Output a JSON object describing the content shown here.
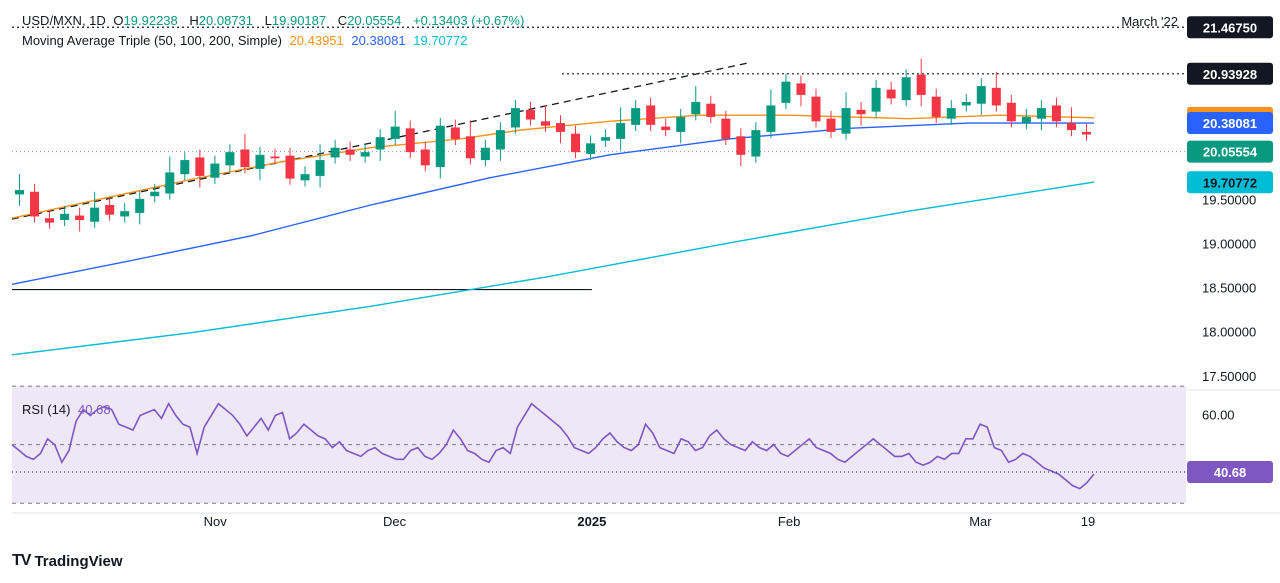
{
  "header": {
    "symbol": "USD/MXN, 1D",
    "ohlc": [
      {
        "key": "O",
        "value": "19.92238"
      },
      {
        "key": "H",
        "value": "20.08731"
      },
      {
        "key": "L",
        "value": "19.90187"
      },
      {
        "key": "C",
        "value": "20.05554"
      }
    ],
    "change": "+0.13403 (+0.67%)",
    "ma_label": "Moving Average Triple (50, 100, 200, Simple)",
    "ma_values": [
      "20.43951",
      "20.38081",
      "19.70772"
    ],
    "rsi_label": "RSI (14)",
    "rsi_value": "40.68",
    "period_label": "March '22"
  },
  "branding": {
    "logo_text": "TradingView"
  },
  "colors": {
    "up": "#089981",
    "down": "#f23645",
    "ma50": "#f7931a",
    "ma100": "#2962ff",
    "ma200": "#00bcd4",
    "rsi": "#7e57c2",
    "rsi_band": "#ede7f6",
    "last_price_badge": "#089981",
    "level_badge": "#131722",
    "grid_dash": "#131722"
  },
  "chart_data": [
    {
      "type": "candlestick",
      "title": "USD/MXN, 1D",
      "ylim": [
        17.35,
        21.55
      ],
      "y_ticks": [
        "21.46750",
        "20.93928",
        "19.50000",
        "19.00000",
        "18.50000",
        "18.00000",
        "17.50000"
      ],
      "x_ticks": [
        "Nov",
        "Dec",
        "2025",
        "Feb",
        "Mar",
        "19"
      ],
      "price_badges": [
        {
          "label": "21.46750",
          "value": 21.4675,
          "kind": "level"
        },
        {
          "label": "20.93928",
          "value": 20.93928,
          "kind": "level"
        },
        {
          "label": "20.43951",
          "value": 20.43951,
          "kind": "ma50"
        },
        {
          "label": "20.38081",
          "value": 20.38081,
          "kind": "ma100"
        },
        {
          "label": "20.05554",
          "value": 20.05554,
          "kind": "last"
        },
        {
          "label": "19.70772",
          "value": 19.70772,
          "kind": "ma200"
        }
      ],
      "horizontal_levels": [
        {
          "value": 21.4675,
          "style": "dotted",
          "extent": "full"
        },
        {
          "value": 20.93928,
          "style": "dotted",
          "extent": "from-jan"
        },
        {
          "value": 18.49,
          "style": "solid",
          "extent": "to-jan"
        }
      ],
      "trendline": {
        "style": "dashed",
        "from": {
          "x": 0,
          "y": 19.29
        },
        "to": {
          "x": 123,
          "y": 21.06
        }
      },
      "x_index_range": [
        0,
        181
      ],
      "candles_anchor": {
        "start_x": 1,
        "x_step": 1.5,
        "count": 72
      },
      "candles_close": [
        19.62,
        19.32,
        19.25,
        19.35,
        19.28,
        19.42,
        19.34,
        19.38,
        19.52,
        19.6,
        19.82,
        19.96,
        19.78,
        19.92,
        20.05,
        19.88,
        20.02,
        19.98,
        19.75,
        19.8,
        19.96,
        20.1,
        20.02,
        20.05,
        20.22,
        20.34,
        20.05,
        19.9,
        20.35,
        20.2,
        19.98,
        20.1,
        20.3,
        20.55,
        20.42,
        20.35,
        20.28,
        20.05,
        20.15,
        20.22,
        20.38,
        20.55,
        20.36,
        20.3,
        20.45,
        20.62,
        20.45,
        20.2,
        20.02,
        20.3,
        20.58,
        20.85,
        20.7,
        20.4,
        20.28,
        20.55,
        20.48,
        20.78,
        20.66,
        20.9,
        20.7,
        20.45,
        20.55,
        20.62,
        20.8,
        20.58,
        20.4,
        20.45,
        20.55,
        20.4,
        20.3,
        20.25
      ],
      "sma50": [
        [
          0,
          19.3
        ],
        [
          15,
          19.52
        ],
        [
          30,
          19.74
        ],
        [
          45,
          19.94
        ],
        [
          60,
          20.1
        ],
        [
          75,
          20.2
        ],
        [
          85,
          20.3
        ],
        [
          100,
          20.4
        ],
        [
          115,
          20.47
        ],
        [
          130,
          20.47
        ],
        [
          150,
          20.43
        ],
        [
          165,
          20.47
        ],
        [
          181,
          20.44
        ]
      ],
      "sma100": [
        [
          0,
          18.55
        ],
        [
          20,
          18.82
        ],
        [
          40,
          19.1
        ],
        [
          60,
          19.45
        ],
        [
          80,
          19.76
        ],
        [
          100,
          20.02
        ],
        [
          120,
          20.2
        ],
        [
          140,
          20.32
        ],
        [
          160,
          20.38
        ],
        [
          181,
          20.38
        ]
      ],
      "sma200": [
        [
          0,
          17.75
        ],
        [
          30,
          18.0
        ],
        [
          60,
          18.3
        ],
        [
          90,
          18.64
        ],
        [
          120,
          19.02
        ],
        [
          150,
          19.38
        ],
        [
          181,
          19.71
        ]
      ],
      "x_tick_positions": {
        "Nov": 34,
        "Dec": 64,
        "2025": 97,
        "Feb": 130,
        "Mar": 162,
        "19": 180
      }
    },
    {
      "type": "line",
      "title": "RSI (14)",
      "ylim": [
        27,
        68
      ],
      "y_ticks": [
        "60.00"
      ],
      "band": [
        30,
        70
      ],
      "reference_lines": [
        30,
        50,
        70
      ],
      "last_value": 40.68,
      "values": [
        50,
        48,
        46,
        45,
        47,
        52,
        50,
        44,
        48,
        58,
        62,
        60,
        62,
        63,
        62,
        57,
        56,
        55,
        60,
        61,
        62,
        59,
        64,
        60,
        57,
        56,
        47,
        56,
        60,
        64,
        62,
        60,
        57,
        53,
        56,
        59,
        55,
        60,
        61,
        52,
        54,
        57,
        55,
        53,
        52,
        49,
        51,
        48,
        47,
        46,
        48,
        49,
        47,
        46,
        45,
        45,
        48,
        49,
        46,
        45,
        47,
        50,
        55,
        52,
        48,
        47,
        45,
        44,
        48,
        49,
        47,
        56,
        60,
        64,
        62,
        60,
        58,
        56,
        53,
        49,
        48,
        47,
        49,
        52,
        54,
        51,
        49,
        48,
        50,
        57,
        54,
        49,
        48,
        47,
        52,
        51,
        48,
        49,
        53,
        55,
        52,
        50,
        49,
        48,
        51,
        49,
        48,
        50,
        47,
        46,
        48,
        50,
        52,
        49,
        48,
        47,
        45,
        44,
        46,
        48,
        50,
        52,
        50,
        48,
        46,
        46,
        47,
        44,
        43,
        44,
        46,
        45,
        47,
        47,
        52,
        52,
        57,
        56,
        49,
        48,
        44,
        45,
        47,
        46,
        44,
        42,
        41,
        40,
        38,
        36,
        35,
        37,
        40
      ]
    }
  ]
}
